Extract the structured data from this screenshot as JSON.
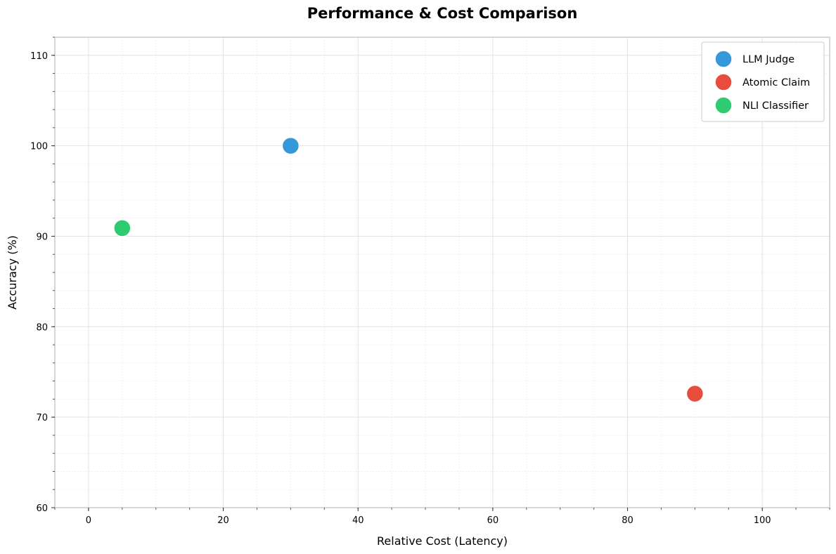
{
  "chart_data": {
    "type": "scatter",
    "title": "Performance & Cost Comparison",
    "xlabel": "Relative Cost (Latency)",
    "ylabel": "Accuracy (%)",
    "xlim": [
      -5,
      110
    ],
    "ylim": [
      60,
      112
    ],
    "xticks": [
      0,
      20,
      40,
      60,
      80,
      100
    ],
    "yticks": [
      60,
      70,
      80,
      90,
      100,
      110
    ],
    "x_minor_step": 5,
    "y_minor_step": 2,
    "grid": true,
    "legend_position": "top-right",
    "series": [
      {
        "name": "LLM Judge",
        "color": "#3498db",
        "x": [
          30
        ],
        "y": [
          100
        ]
      },
      {
        "name": "Atomic Claim",
        "color": "#e74c3c",
        "x": [
          90
        ],
        "y": [
          72.6
        ]
      },
      {
        "name": "NLI Classifier",
        "color": "#2ecc71",
        "x": [
          5
        ],
        "y": [
          90.9
        ]
      }
    ]
  }
}
